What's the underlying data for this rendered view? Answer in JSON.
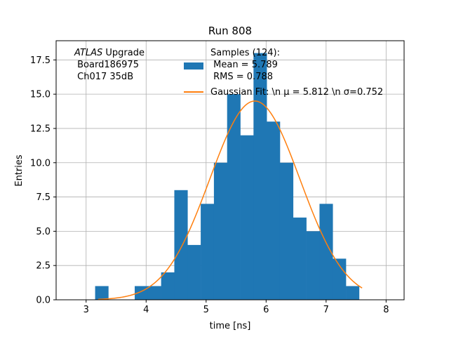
{
  "chart_data": {
    "type": "bar",
    "title": "Run 808",
    "xlabel": "time [ns]",
    "ylabel": "Entries",
    "xlim": [
      2.5,
      8.3
    ],
    "ylim": [
      0,
      18.9
    ],
    "xticks": [
      3,
      4,
      5,
      6,
      7,
      8
    ],
    "yticks": [
      0.0,
      2.5,
      5.0,
      7.5,
      10.0,
      12.5,
      15.0,
      17.5
    ],
    "grid": true,
    "legend_placement": "top-right",
    "bin_edges": [
      3.15,
      3.37,
      3.59,
      3.81,
      4.03,
      4.25,
      4.47,
      4.69,
      4.91,
      5.13,
      5.35,
      5.57,
      5.79,
      6.01,
      6.23,
      6.45,
      6.67,
      6.89,
      7.11,
      7.33,
      7.55
    ],
    "counts": [
      1,
      0,
      0,
      1,
      1,
      2,
      8,
      4,
      7,
      10,
      15,
      12,
      18,
      13,
      10,
      6,
      5,
      7,
      3,
      1
    ],
    "fit": {
      "mu": 5.812,
      "sigma": 0.752,
      "amplitude": 14.5,
      "x_range": [
        3.2,
        7.6
      ]
    },
    "annotation": {
      "italic_part": "ATLAS",
      "line1_rest": " Upgrade",
      "line2": " Board186975",
      "line3": " Ch017 35dB"
    },
    "series": [
      {
        "name_lines": [
          "Samples (124):",
          " Mean = 5.789",
          " RMS = 0.788"
        ],
        "color": "#1f77b4",
        "kind": "histogram"
      },
      {
        "name": "Gaussian Fit: \\n μ = 5.812 \\n σ=0.752",
        "color": "#ff7f0e",
        "kind": "line"
      }
    ]
  }
}
